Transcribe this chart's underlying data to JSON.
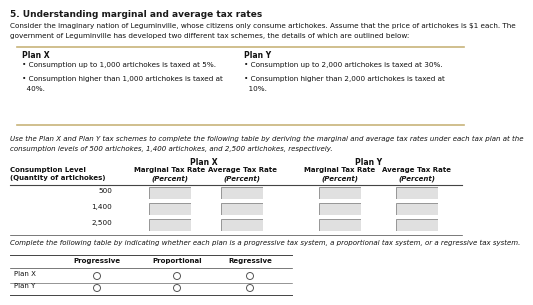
{
  "title": "5. Understanding marginal and average tax rates",
  "intro_line1": "Consider the imaginary nation of Leguminville, whose citizens only consume artichokes. Assume that the price of artichokes is $1 each. The",
  "intro_line2": "government of Leguminville has developed two different tax schemes, the details of which are outlined below:",
  "plan_x_header": "Plan X",
  "plan_y_header": "Plan Y",
  "plan_x_bullet1": "• Consumption up to 1,000 artichokes is taxed at 5%.",
  "plan_x_bullet2a": "• Consumption higher than 1,000 artichokes is taxed at",
  "plan_x_bullet2b": "  40%.",
  "plan_y_bullet1": "• Consumption up to 2,000 artichokes is taxed at 30%.",
  "plan_y_bullet2a": "• Consumption higher than 2,000 artichokes is taxed at",
  "plan_y_bullet2b": "  10%.",
  "table1_intro_line1": "Use the Plan X and Plan Y tax schemes to complete the following table by deriving the marginal and average tax rates under each tax plan at the",
  "table1_intro_line2": "consumption levels of 500 artichokes, 1,400 artichokes, and 2,500 artichokes, respectively.",
  "col0_hdr1": "Consumption Level",
  "col0_hdr2": "(Quantity of artichokes)",
  "planx_hdr": "Plan X",
  "plany_hdr": "Plan Y",
  "sub_hdr1a": "Marginal Tax Rate",
  "sub_hdr1b": "Average Tax Rate",
  "sub_hdr2a": "Marginal Tax Rate",
  "sub_hdr2b": "Average Tax Rate",
  "sub_hdr_paren": "(Percent)",
  "rows": [
    "500",
    "1,400",
    "2,500"
  ],
  "table2_intro": "Complete the following table by indicating whether each plan is a progressive tax system, a proportional tax system, or a regressive tax system.",
  "t2_cols": [
    "Progressive",
    "Proportional",
    "Regressive"
  ],
  "t2_rows": [
    "Plan X",
    "Plan Y"
  ],
  "bg_color": "#ffffff",
  "text_color": "#111111",
  "title_color": "#1a1a1a",
  "tan_color": "#c8b47a",
  "dark_line": "#444444",
  "box_fill": "#e0e0e0",
  "box_edge": "#888888"
}
